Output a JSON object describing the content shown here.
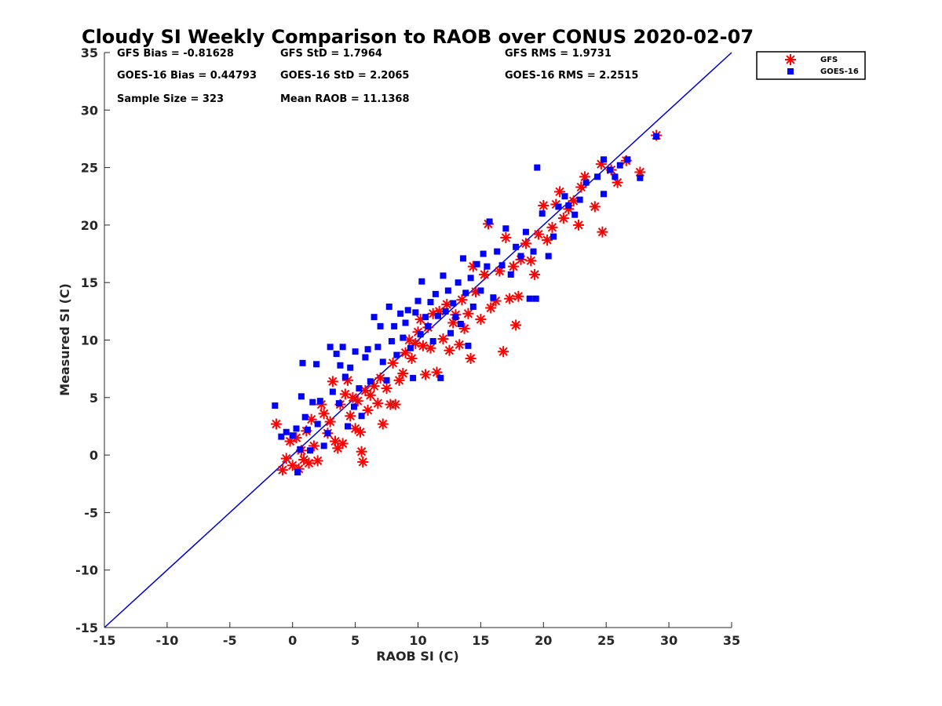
{
  "chart_data": {
    "type": "scatter",
    "title": "Cloudy SI Weekly Comparison to RAOB over CONUS 2020-02-07",
    "xlabel": "RAOB SI (C)",
    "ylabel": "Measured SI (C)",
    "xlim": [
      -15,
      35
    ],
    "ylim": [
      -15,
      35
    ],
    "xticks": [
      "-15",
      "-10",
      "-5",
      "0",
      "5",
      "10",
      "15",
      "20",
      "25",
      "30",
      "35"
    ],
    "yticks": [
      "-15",
      "-10",
      "-5",
      "0",
      "5",
      "10",
      "15",
      "20",
      "25",
      "30",
      "35"
    ],
    "grid": false,
    "legend_position": "outside-top-right",
    "reference_line": {
      "from": [
        -15,
        -15
      ],
      "to": [
        35,
        35
      ],
      "color": "#0000cc"
    },
    "stats": [
      "GFS Bias = -0.81628",
      "GFS StD = 1.7964",
      "GFS RMS = 1.9731",
      "GOES-16 Bias = 0.44793",
      "GOES-16 StD = 2.2065",
      "GOES-16 RMS = 2.2515",
      "Sample Size = 323",
      "Mean RAOB = 11.1368"
    ],
    "series": [
      {
        "name": "GFS",
        "marker": "asterisk",
        "color": "#ff0000",
        "points": [
          [
            -1.3,
            2.7
          ],
          [
            -0.8,
            -1.3
          ],
          [
            -0.5,
            -0.3
          ],
          [
            -0.2,
            1.2
          ],
          [
            0,
            -0.9
          ],
          [
            0.3,
            1.5
          ],
          [
            0.5,
            -1.2
          ],
          [
            0.7,
            0.4
          ],
          [
            0.9,
            -0.4
          ],
          [
            1.1,
            2.1
          ],
          [
            1.3,
            -0.7
          ],
          [
            1.5,
            3.1
          ],
          [
            1.7,
            0.8
          ],
          [
            2,
            -0.5
          ],
          [
            2.3,
            4.4
          ],
          [
            2.5,
            3.6
          ],
          [
            2.8,
            1.9
          ],
          [
            3,
            2.9
          ],
          [
            3.2,
            6.4
          ],
          [
            3.4,
            1.2
          ],
          [
            3.6,
            0.6
          ],
          [
            3.8,
            4.4
          ],
          [
            4,
            1.0
          ],
          [
            4.2,
            5.3
          ],
          [
            4.4,
            6.5
          ],
          [
            4.6,
            3.4
          ],
          [
            4.8,
            5.0
          ],
          [
            5,
            2.3
          ],
          [
            5.2,
            4.7
          ],
          [
            5.4,
            2.0
          ],
          [
            5.5,
            0.3
          ],
          [
            5.6,
            -0.6
          ],
          [
            5.8,
            5.6
          ],
          [
            6,
            3.9
          ],
          [
            6.2,
            5.2
          ],
          [
            6.5,
            6.0
          ],
          [
            6.8,
            4.5
          ],
          [
            7,
            6.7
          ],
          [
            7.2,
            2.7
          ],
          [
            7.5,
            5.8
          ],
          [
            7.8,
            4.4
          ],
          [
            8,
            8.0
          ],
          [
            8.2,
            4.4
          ],
          [
            8.5,
            6.5
          ],
          [
            8.8,
            7.1
          ],
          [
            9,
            8.9
          ],
          [
            9.3,
            10.0
          ],
          [
            9.5,
            8.4
          ],
          [
            9.8,
            9.7
          ],
          [
            10,
            10.7
          ],
          [
            10.2,
            11.8
          ],
          [
            10.4,
            9.5
          ],
          [
            10.6,
            7.0
          ],
          [
            10.8,
            11.1
          ],
          [
            11,
            9.3
          ],
          [
            11.2,
            12.3
          ],
          [
            11.5,
            7.2
          ],
          [
            11.7,
            12.5
          ],
          [
            12,
            10.1
          ],
          [
            12.3,
            13.1
          ],
          [
            12.5,
            9.1
          ],
          [
            12.8,
            11.5
          ],
          [
            13,
            12.2
          ],
          [
            13.3,
            9.6
          ],
          [
            13.5,
            13.5
          ],
          [
            13.7,
            11.0
          ],
          [
            14,
            12.3
          ],
          [
            14.2,
            8.4
          ],
          [
            14.4,
            16.4
          ],
          [
            14.6,
            14.2
          ],
          [
            15,
            11.8
          ],
          [
            15.3,
            15.7
          ],
          [
            15.6,
            20.1
          ],
          [
            15.8,
            12.8
          ],
          [
            16.2,
            13.4
          ],
          [
            16.5,
            16.0
          ],
          [
            16.8,
            9.0
          ],
          [
            17,
            18.9
          ],
          [
            17.3,
            13.6
          ],
          [
            17.6,
            16.4
          ],
          [
            17.8,
            11.3
          ],
          [
            18,
            13.8
          ],
          [
            18.2,
            17.0
          ],
          [
            18.6,
            18.4
          ],
          [
            19,
            16.9
          ],
          [
            19.3,
            15.7
          ],
          [
            19.6,
            19.2
          ],
          [
            20,
            21.7
          ],
          [
            20.3,
            18.7
          ],
          [
            20.7,
            19.8
          ],
          [
            21,
            21.8
          ],
          [
            21.3,
            22.9
          ],
          [
            21.6,
            20.6
          ],
          [
            22,
            21.4
          ],
          [
            22.4,
            22.1
          ],
          [
            22.8,
            20.0
          ],
          [
            23,
            23.3
          ],
          [
            23.3,
            24.2
          ],
          [
            24.1,
            21.6
          ],
          [
            24.6,
            25.3
          ],
          [
            24.7,
            19.4
          ],
          [
            25.4,
            24.8
          ],
          [
            25.9,
            23.7
          ],
          [
            26.6,
            25.6
          ],
          [
            27.7,
            24.6
          ],
          [
            29,
            27.8
          ]
        ]
      },
      {
        "name": "GOES-16",
        "marker": "square",
        "color": "#0000ff",
        "points": [
          [
            -1.4,
            4.3
          ],
          [
            -0.9,
            1.6
          ],
          [
            -0.5,
            2.0
          ],
          [
            0,
            1.7
          ],
          [
            0.3,
            2.3
          ],
          [
            0.4,
            -1.5
          ],
          [
            0.6,
            0.5
          ],
          [
            0.7,
            5.1
          ],
          [
            0.8,
            8.0
          ],
          [
            1,
            3.3
          ],
          [
            1.2,
            2.2
          ],
          [
            1.4,
            0.4
          ],
          [
            1.6,
            4.6
          ],
          [
            1.9,
            7.9
          ],
          [
            2,
            2.7
          ],
          [
            2.2,
            4.7
          ],
          [
            2.5,
            0.8
          ],
          [
            2.8,
            1.9
          ],
          [
            3,
            9.4
          ],
          [
            3.2,
            5.5
          ],
          [
            3.5,
            8.8
          ],
          [
            3.7,
            4.5
          ],
          [
            3.8,
            7.8
          ],
          [
            4,
            9.4
          ],
          [
            4.2,
            6.8
          ],
          [
            4.4,
            2.5
          ],
          [
            4.6,
            7.6
          ],
          [
            4.9,
            4.2
          ],
          [
            5,
            9.0
          ],
          [
            5.3,
            5.8
          ],
          [
            5.5,
            3.4
          ],
          [
            5.8,
            8.5
          ],
          [
            6,
            9.2
          ],
          [
            6.2,
            6.4
          ],
          [
            6.5,
            12.0
          ],
          [
            6.8,
            9.4
          ],
          [
            7,
            11.2
          ],
          [
            7.2,
            8.1
          ],
          [
            7.5,
            6.5
          ],
          [
            7.7,
            12.9
          ],
          [
            7.9,
            9.9
          ],
          [
            8.1,
            11.2
          ],
          [
            8.3,
            8.7
          ],
          [
            8.6,
            12.3
          ],
          [
            8.8,
            10.2
          ],
          [
            9,
            11.5
          ],
          [
            9.2,
            12.6
          ],
          [
            9.4,
            9.3
          ],
          [
            9.6,
            6.7
          ],
          [
            9.8,
            12.4
          ],
          [
            10,
            13.4
          ],
          [
            10.2,
            10.5
          ],
          [
            10.3,
            15.1
          ],
          [
            10.6,
            12.0
          ],
          [
            10.8,
            11.2
          ],
          [
            11,
            13.3
          ],
          [
            11.2,
            9.9
          ],
          [
            11.4,
            14.0
          ],
          [
            11.6,
            12.1
          ],
          [
            11.8,
            6.7
          ],
          [
            12,
            15.6
          ],
          [
            12.2,
            12.5
          ],
          [
            12.4,
            14.3
          ],
          [
            12.6,
            10.6
          ],
          [
            12.8,
            13.2
          ],
          [
            13,
            12.0
          ],
          [
            13.2,
            15.0
          ],
          [
            13.4,
            11.4
          ],
          [
            13.6,
            17.1
          ],
          [
            13.8,
            14.1
          ],
          [
            14,
            9.5
          ],
          [
            14.2,
            15.4
          ],
          [
            14.4,
            12.9
          ],
          [
            14.7,
            16.6
          ],
          [
            15,
            14.3
          ],
          [
            15.2,
            17.5
          ],
          [
            15.5,
            16.4
          ],
          [
            15.7,
            20.3
          ],
          [
            16,
            13.7
          ],
          [
            16.3,
            17.7
          ],
          [
            16.7,
            16.5
          ],
          [
            17,
            19.7
          ],
          [
            17.4,
            15.7
          ],
          [
            17.8,
            18.1
          ],
          [
            18.2,
            17.3
          ],
          [
            18.6,
            19.4
          ],
          [
            18.9,
            13.6
          ],
          [
            19.2,
            17.7
          ],
          [
            19.4,
            13.6
          ],
          [
            19.5,
            25.0
          ],
          [
            19.9,
            21.0
          ],
          [
            20.4,
            17.3
          ],
          [
            20.8,
            19.0
          ],
          [
            21.2,
            21.6
          ],
          [
            21.7,
            22.5
          ],
          [
            22,
            21.7
          ],
          [
            22.5,
            20.9
          ],
          [
            22.9,
            22.2
          ],
          [
            23.4,
            23.7
          ],
          [
            24.3,
            24.2
          ],
          [
            24.8,
            25.7
          ],
          [
            24.8,
            22.7
          ],
          [
            25.3,
            24.8
          ],
          [
            25.7,
            24.2
          ],
          [
            26.1,
            25.2
          ],
          [
            26.7,
            25.7
          ],
          [
            27.7,
            24.1
          ],
          [
            29,
            27.7
          ]
        ]
      }
    ]
  }
}
